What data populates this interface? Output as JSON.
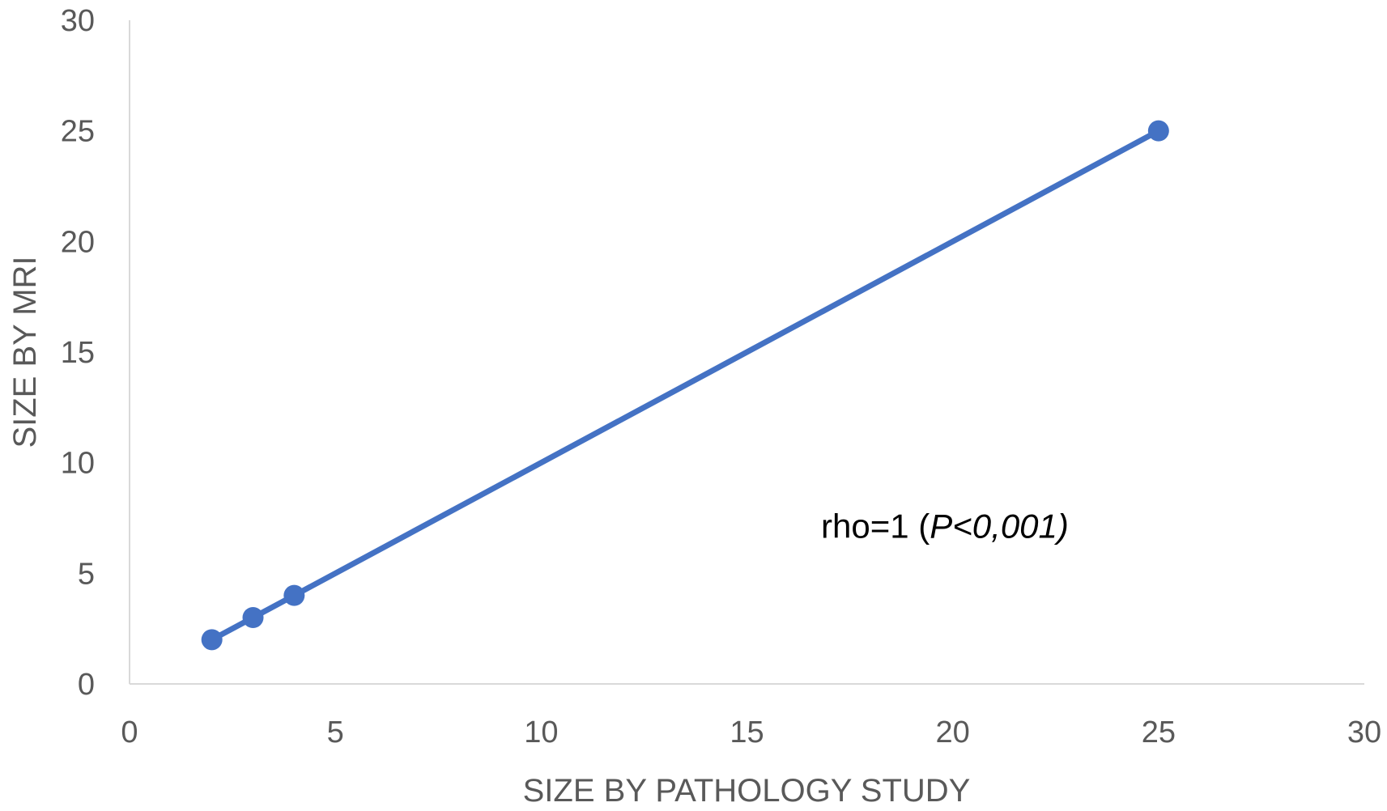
{
  "chart_data": {
    "type": "line",
    "title": "",
    "xlabel": "SIZE BY PATHOLOGY STUDY",
    "ylabel": "SIZE BY MRI",
    "xlim": [
      0,
      30
    ],
    "ylim": [
      0,
      30
    ],
    "x_ticks": [
      "0",
      "5",
      "10",
      "15",
      "20",
      "25",
      "30"
    ],
    "y_ticks": [
      "0",
      "5",
      "10",
      "15",
      "20",
      "25",
      "30"
    ],
    "grid": false,
    "legend": "none",
    "series": [
      {
        "color": "#4472C4",
        "markers": true,
        "points": [
          {
            "x": 2,
            "y": 2
          },
          {
            "x": 3,
            "y": 3
          },
          {
            "x": 4,
            "y": 4
          },
          {
            "x": 25,
            "y": 25
          }
        ]
      }
    ],
    "annotation": {
      "prefix": "rho=1 (",
      "italic": "P<0,001)",
      "anchor_x": 16.8,
      "anchor_y": 6.6
    },
    "axis_color": "#D9D9D9"
  }
}
